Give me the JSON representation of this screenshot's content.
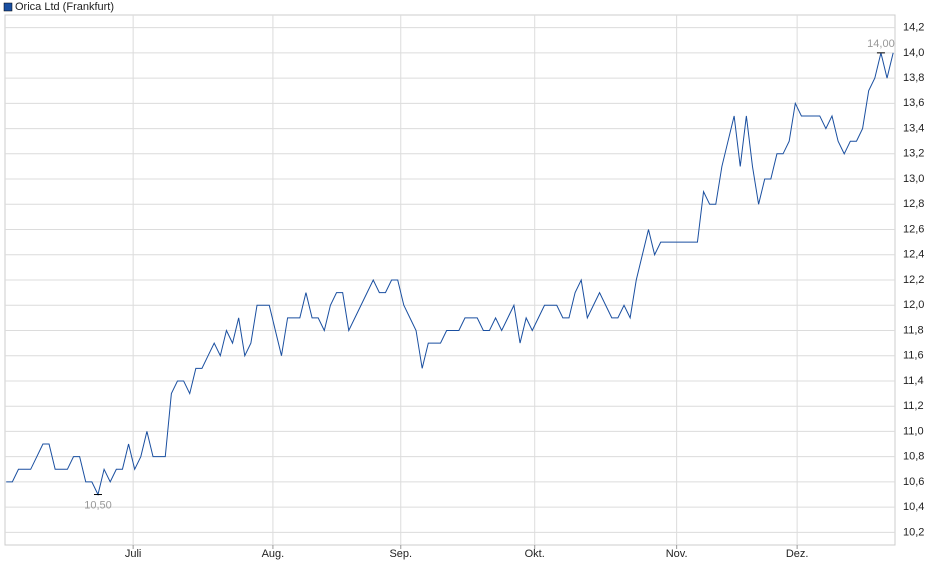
{
  "chart_data": {
    "type": "line",
    "series": [
      {
        "name": "Orica Ltd (Frankfurt)",
        "color": "#1a4fa0",
        "values": [
          10.6,
          10.6,
          10.7,
          10.7,
          10.7,
          10.8,
          10.9,
          10.9,
          10.7,
          10.7,
          10.7,
          10.8,
          10.8,
          10.6,
          10.6,
          10.5,
          10.7,
          10.6,
          10.7,
          10.7,
          10.9,
          10.7,
          10.8,
          11.0,
          10.8,
          10.8,
          10.8,
          11.3,
          11.4,
          11.4,
          11.3,
          11.5,
          11.5,
          11.6,
          11.7,
          11.6,
          11.8,
          11.7,
          11.9,
          11.6,
          11.7,
          12.0,
          12.0,
          12.0,
          11.8,
          11.6,
          11.9,
          11.9,
          11.9,
          12.1,
          11.9,
          11.9,
          11.8,
          12.0,
          12.1,
          12.1,
          11.8,
          11.9,
          12.0,
          12.1,
          12.2,
          12.1,
          12.1,
          12.2,
          12.2,
          12.0,
          11.9,
          11.8,
          11.5,
          11.7,
          11.7,
          11.7,
          11.8,
          11.8,
          11.8,
          11.9,
          11.9,
          11.9,
          11.8,
          11.8,
          11.9,
          11.8,
          11.9,
          12.0,
          11.7,
          11.9,
          11.8,
          11.9,
          12.0,
          12.0,
          12.0,
          11.9,
          11.9,
          12.1,
          12.2,
          11.9,
          12.0,
          12.1,
          12.0,
          11.9,
          11.9,
          12.0,
          11.9,
          12.2,
          12.4,
          12.6,
          12.4,
          12.5,
          12.5,
          12.5,
          12.5,
          12.5,
          12.5,
          12.5,
          12.9,
          12.8,
          12.8,
          13.1,
          13.3,
          13.5,
          13.1,
          13.5,
          13.1,
          12.8,
          13.0,
          13.0,
          13.2,
          13.2,
          13.3,
          13.6,
          13.5,
          13.5,
          13.5,
          13.5,
          13.4,
          13.5,
          13.3,
          13.2,
          13.3,
          13.3,
          13.4,
          13.7,
          13.8,
          14.0,
          13.8,
          14.0
        ]
      }
    ],
    "x": [
      0,
      1,
      2,
      3,
      4,
      5,
      6,
      7,
      8,
      9,
      10,
      11,
      12,
      13,
      14,
      15,
      16,
      17,
      18,
      19,
      20,
      21,
      22,
      23,
      24,
      25,
      26,
      27,
      28,
      29,
      30,
      31,
      32,
      33,
      34,
      35,
      36,
      37,
      38,
      39,
      40,
      41,
      42,
      43,
      44,
      45,
      46,
      47,
      48,
      49,
      50,
      51,
      52,
      53,
      54,
      55,
      56,
      57,
      58,
      59,
      60,
      61,
      62,
      63,
      64,
      65,
      66,
      67,
      68,
      69,
      70,
      71,
      72,
      73,
      74,
      75,
      76,
      77,
      78,
      79,
      80,
      81,
      82,
      83,
      84,
      85,
      86,
      87,
      88,
      89,
      90,
      91,
      92,
      93,
      94,
      95,
      96,
      97,
      98,
      99,
      100,
      101,
      102,
      103,
      104,
      105,
      106,
      107,
      108,
      109,
      110,
      111,
      112,
      113,
      114,
      115,
      116,
      117,
      118,
      119,
      120,
      121,
      122,
      123,
      124,
      125,
      126,
      127,
      128,
      129,
      130,
      131,
      132,
      133,
      134,
      135,
      136,
      137,
      138,
      139,
      140,
      141,
      142,
      143,
      144,
      145
    ],
    "xlim": [
      -0.2,
      145.3
    ],
    "xticks": [
      {
        "value": 20.75,
        "label": "Juli"
      },
      {
        "value": 43.6,
        "label": "Aug."
      },
      {
        "value": 64.5,
        "label": "Sep."
      },
      {
        "value": 86.4,
        "label": "Okt."
      },
      {
        "value": 109.6,
        "label": "Nov."
      },
      {
        "value": 129.3,
        "label": "Dez."
      }
    ],
    "ylim": [
      10.1,
      14.3
    ],
    "yticks": [
      {
        "value": 10.2,
        "label": "10,2"
      },
      {
        "value": 10.4,
        "label": "10,4"
      },
      {
        "value": 10.6,
        "label": "10,6"
      },
      {
        "value": 10.8,
        "label": "10,8"
      },
      {
        "value": 11.0,
        "label": "11,0"
      },
      {
        "value": 11.2,
        "label": "11,2"
      },
      {
        "value": 11.4,
        "label": "11,4"
      },
      {
        "value": 11.6,
        "label": "11,6"
      },
      {
        "value": 11.8,
        "label": "11,8"
      },
      {
        "value": 12.0,
        "label": "12,0"
      },
      {
        "value": 12.2,
        "label": "12,2"
      },
      {
        "value": 12.4,
        "label": "12,4"
      },
      {
        "value": 12.6,
        "label": "12,6"
      },
      {
        "value": 12.8,
        "label": "12,8"
      },
      {
        "value": 13.0,
        "label": "13,0"
      },
      {
        "value": 13.2,
        "label": "13,2"
      },
      {
        "value": 13.4,
        "label": "13,4"
      },
      {
        "value": 13.6,
        "label": "13,6"
      },
      {
        "value": 13.8,
        "label": "13,8"
      },
      {
        "value": 14.0,
        "label": "14,0"
      },
      {
        "value": 14.2,
        "label": "14,2"
      }
    ],
    "annotations": [
      {
        "label": "14,00",
        "x": 143,
        "y": 14.0,
        "position": "above"
      },
      {
        "label": "10,50",
        "x": 15,
        "y": 10.5,
        "position": "below"
      }
    ],
    "grid": true,
    "legend": "top-left"
  }
}
